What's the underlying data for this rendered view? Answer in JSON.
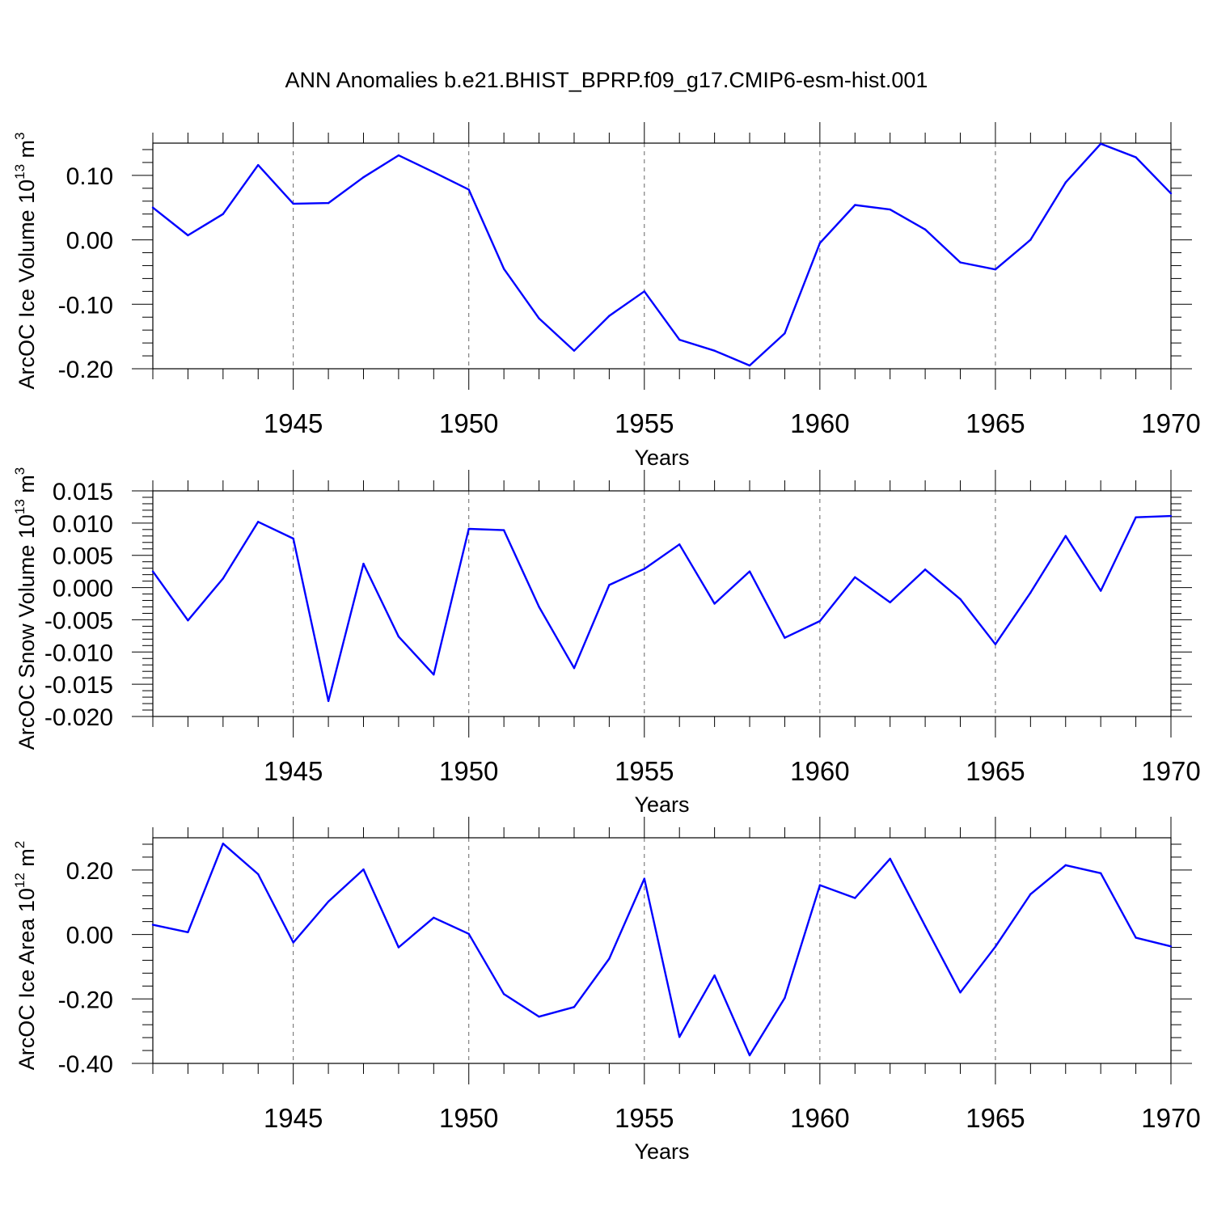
{
  "title": "ANN Anomalies b.e21.BHIST_BPRP.f09_g17.CMIP6-esm-hist.001",
  "line_color": "#0000ff",
  "chart_data": [
    {
      "type": "line",
      "ylabel": "ArcOC Ice Volume 10",
      "ylabel_sup": "13",
      "ylabel_unit": "m",
      "ylabel_unit_sup": "3",
      "xlabel": "Years",
      "xlim": [
        1941,
        1970
      ],
      "ylim": [
        -0.2,
        0.15
      ],
      "yticks": [
        0.1,
        0.0,
        -0.1,
        -0.2
      ],
      "ytick_labels": [
        "0.10",
        "0.00",
        "-0.10",
        "-0.20"
      ],
      "xticks": [
        1945,
        1950,
        1955,
        1960,
        1965,
        1970
      ],
      "xtick_labels": [
        "1945",
        "1950",
        "1955",
        "1960",
        "1965",
        "1970"
      ],
      "x": [
        1941,
        1942,
        1943,
        1944,
        1945,
        1946,
        1947,
        1948,
        1949,
        1950,
        1951,
        1952,
        1953,
        1954,
        1955,
        1956,
        1957,
        1958,
        1959,
        1960,
        1961,
        1962,
        1963,
        1964,
        1965,
        1966,
        1967,
        1968,
        1969,
        1970
      ],
      "values": [
        0.05,
        0.007,
        0.04,
        0.116,
        0.056,
        0.057,
        0.097,
        0.131,
        0.105,
        0.078,
        -0.045,
        -0.122,
        -0.172,
        -0.118,
        -0.08,
        -0.155,
        -0.172,
        -0.195,
        -0.145,
        -0.005,
        0.054,
        0.047,
        0.016,
        -0.035,
        -0.046,
        0.0,
        0.089,
        0.149,
        0.128,
        0.072
      ]
    },
    {
      "type": "line",
      "ylabel": "ArcOC Snow Volume 10",
      "ylabel_sup": "13",
      "ylabel_unit": "m",
      "ylabel_unit_sup": "3",
      "xlabel": "Years",
      "xlim": [
        1941,
        1970
      ],
      "ylim": [
        -0.02,
        0.015
      ],
      "yticks": [
        0.015,
        0.01,
        0.005,
        0.0,
        -0.005,
        -0.01,
        -0.015,
        -0.02
      ],
      "ytick_labels": [
        "0.015",
        "0.010",
        "0.005",
        "0.000",
        "-0.005",
        "-0.010",
        "-0.015",
        "-0.020"
      ],
      "xticks": [
        1945,
        1950,
        1955,
        1960,
        1965,
        1970
      ],
      "xtick_labels": [
        "1945",
        "1950",
        "1955",
        "1960",
        "1965",
        "1970"
      ],
      "x": [
        1941,
        1942,
        1943,
        1944,
        1945,
        1946,
        1947,
        1948,
        1949,
        1950,
        1951,
        1952,
        1953,
        1954,
        1955,
        1956,
        1957,
        1958,
        1959,
        1960,
        1961,
        1962,
        1963,
        1964,
        1965,
        1966,
        1967,
        1968,
        1969,
        1970
      ],
      "values": [
        0.0025,
        -0.0051,
        0.0014,
        0.0102,
        0.0076,
        -0.0176,
        0.0037,
        -0.0076,
        -0.0135,
        0.0091,
        0.0089,
        -0.003,
        -0.0125,
        0.0004,
        0.0029,
        0.0067,
        -0.0025,
        0.0025,
        -0.0078,
        -0.0052,
        0.0016,
        -0.0023,
        0.0028,
        -0.0018,
        -0.0088,
        -0.0008,
        0.008,
        -0.0005,
        0.0109,
        0.0111
      ]
    },
    {
      "type": "line",
      "ylabel": "ArcOC Ice Area 10",
      "ylabel_sup": "12",
      "ylabel_unit": "m",
      "ylabel_unit_sup": "2",
      "xlabel": "Years",
      "xlim": [
        1941,
        1970
      ],
      "ylim": [
        -0.4,
        0.3
      ],
      "yticks": [
        0.2,
        0.0,
        -0.2,
        -0.4
      ],
      "ytick_labels": [
        "0.20",
        "0.00",
        "-0.20",
        "-0.40"
      ],
      "xticks": [
        1945,
        1950,
        1955,
        1960,
        1965,
        1970
      ],
      "xtick_labels": [
        "1945",
        "1950",
        "1955",
        "1960",
        "1965",
        "1970"
      ],
      "x": [
        1941,
        1942,
        1943,
        1944,
        1945,
        1946,
        1947,
        1948,
        1949,
        1950,
        1951,
        1952,
        1953,
        1954,
        1955,
        1956,
        1957,
        1958,
        1959,
        1960,
        1961,
        1962,
        1963,
        1964,
        1965,
        1966,
        1967,
        1968,
        1969,
        1970
      ],
      "values": [
        0.03,
        0.007,
        0.282,
        0.187,
        -0.025,
        0.102,
        0.202,
        -0.04,
        0.052,
        0.002,
        -0.185,
        -0.255,
        -0.225,
        -0.075,
        0.173,
        -0.318,
        -0.127,
        -0.375,
        -0.197,
        0.153,
        0.113,
        0.235,
        0.026,
        -0.18,
        -0.038,
        0.125,
        0.215,
        0.19,
        -0.01,
        -0.037
      ]
    }
  ]
}
